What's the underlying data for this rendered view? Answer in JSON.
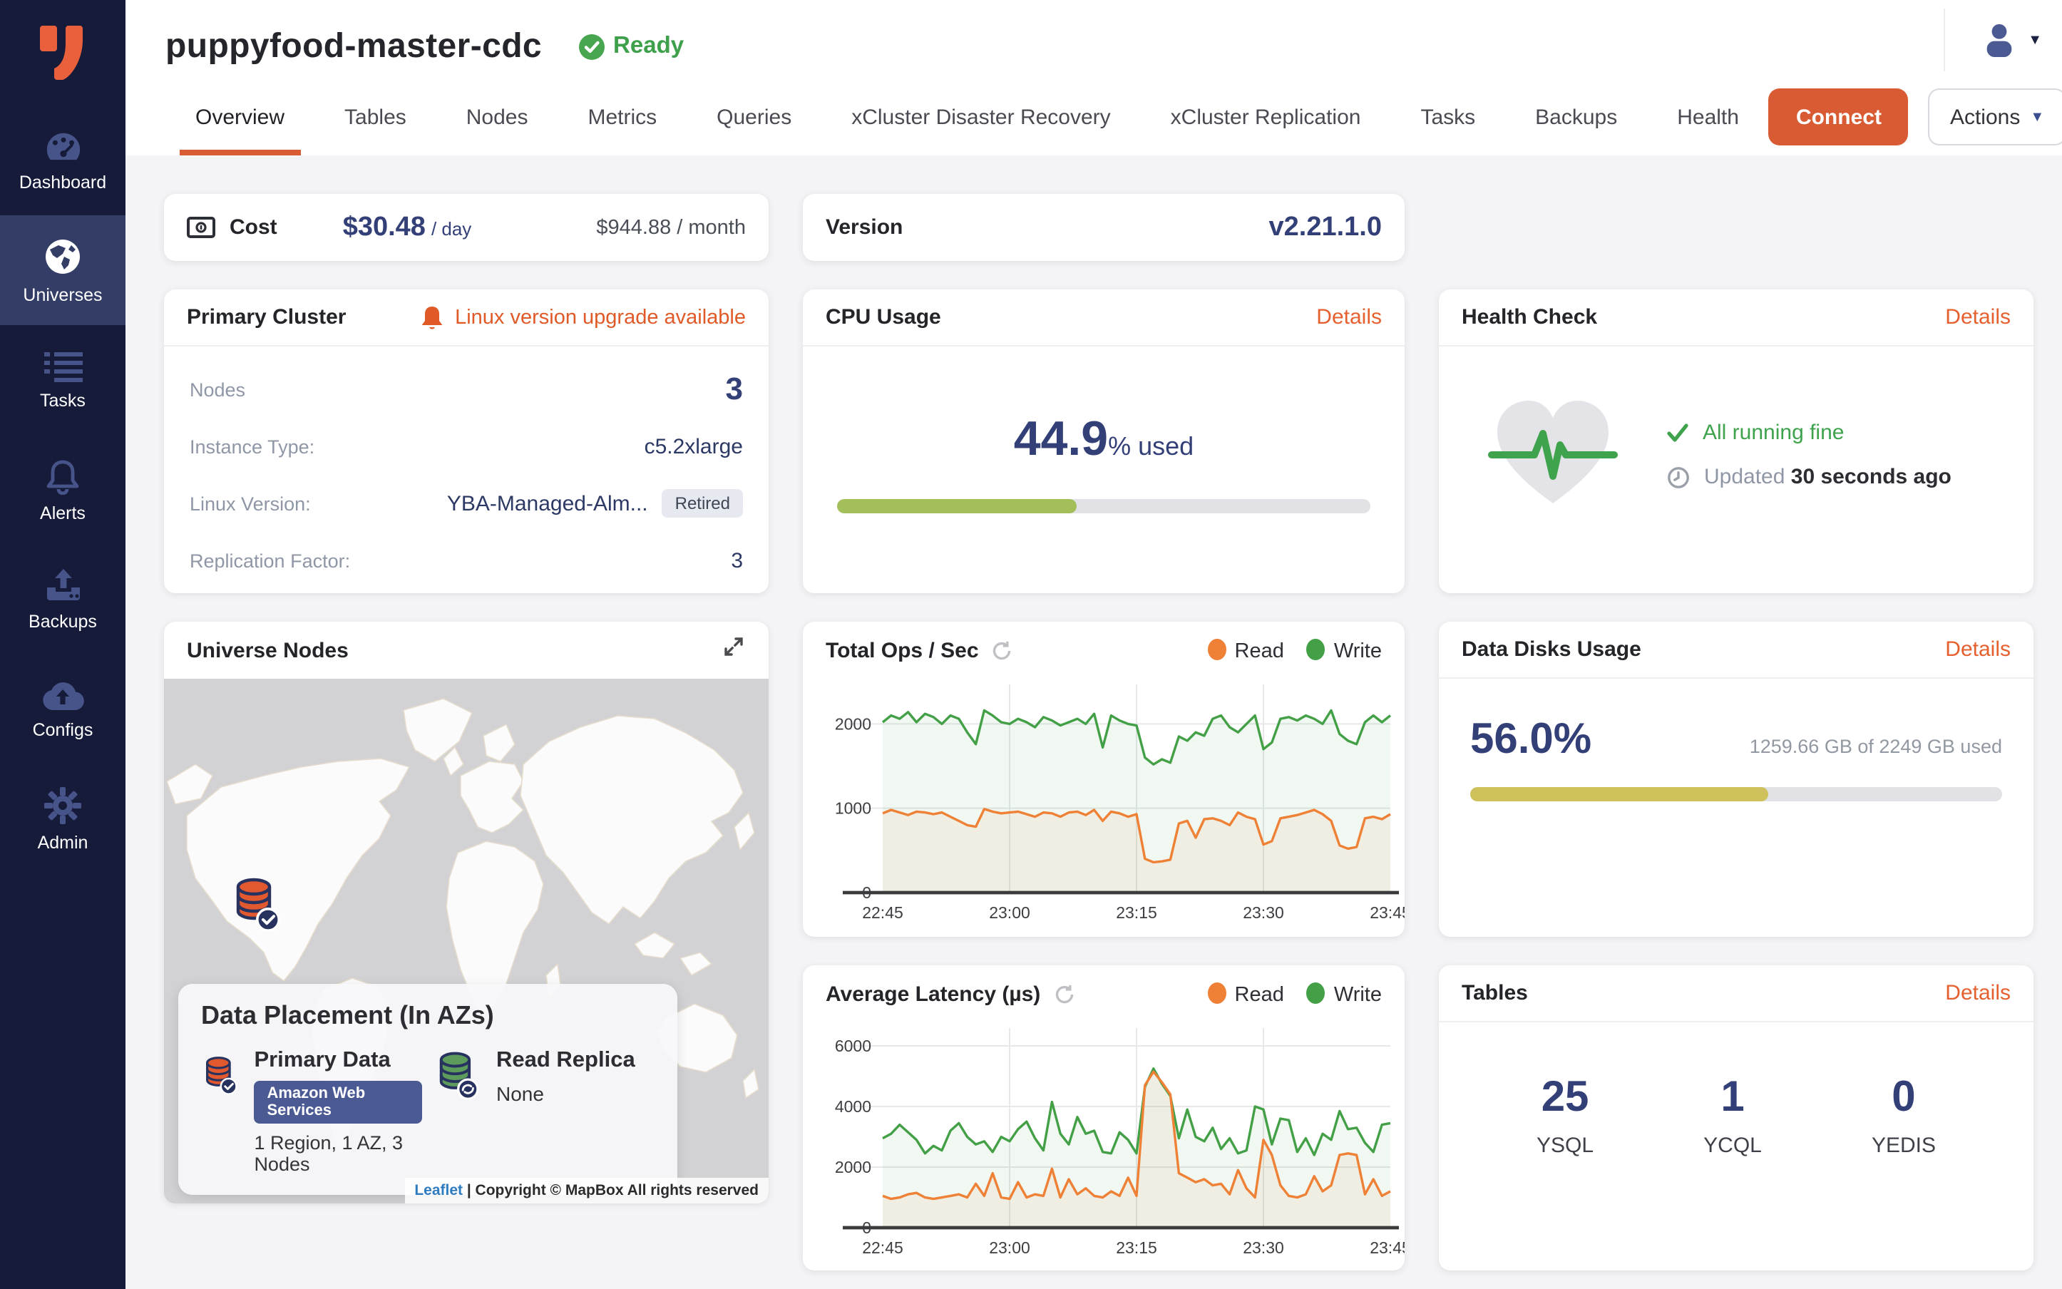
{
  "app": {
    "title": "puppyfood-master-cdc",
    "status": "Ready"
  },
  "sidebar": {
    "items": [
      {
        "label": "Dashboard"
      },
      {
        "label": "Universes"
      },
      {
        "label": "Tasks"
      },
      {
        "label": "Alerts"
      },
      {
        "label": "Backups"
      },
      {
        "label": "Configs"
      },
      {
        "label": "Admin"
      }
    ]
  },
  "tabs": [
    "Overview",
    "Tables",
    "Nodes",
    "Metrics",
    "Queries",
    "xCluster Disaster Recovery",
    "xCluster Replication",
    "Tasks",
    "Backups",
    "Health"
  ],
  "header_buttons": {
    "connect": "Connect",
    "actions": "Actions"
  },
  "cost": {
    "label": "Cost",
    "per_day": "$30.48",
    "per_day_unit": "/ day",
    "per_month": "$944.88 / month"
  },
  "version": {
    "label": "Version",
    "value": "v2.21.1.0"
  },
  "cluster": {
    "title": "Primary Cluster",
    "alert": "Linux version upgrade available",
    "rows": [
      {
        "label": "Nodes",
        "value": "3"
      },
      {
        "label": "Instance Type:",
        "value": "c5.2xlarge"
      },
      {
        "label": "Linux Version:",
        "value": "YBA-Managed-Alm...",
        "badge": "Retired"
      },
      {
        "label": "Replication Factor:",
        "value": "3"
      }
    ]
  },
  "cpu": {
    "title": "CPU Usage",
    "details": "Details",
    "value": "44.9",
    "suffix": "% used",
    "percent": 44.9
  },
  "health": {
    "title": "Health Check",
    "details": "Details",
    "status": "All running fine",
    "updated_label": "Updated",
    "updated_value": "30 seconds ago"
  },
  "map": {
    "title": "Universe Nodes",
    "placement_title": "Data Placement (In AZs)",
    "primary_label": "Primary Data",
    "primary_provider": "Amazon Web Services",
    "primary_sub": "1 Region, 1 AZ, 3 Nodes",
    "replica_label": "Read Replica",
    "replica_value": "None",
    "attribution_link": "Leaflet",
    "attribution_rest": " | Copyright © MapBox All rights reserved"
  },
  "disks": {
    "title": "Data Disks Usage",
    "details": "Details",
    "percent_label": "56.0%",
    "percent": 56,
    "usage": "1259.66 GB of 2249 GB used"
  },
  "tables": {
    "title": "Tables",
    "details": "Details",
    "counts": [
      {
        "value": "25",
        "label": "YSQL"
      },
      {
        "value": "1",
        "label": "YCQL"
      },
      {
        "value": "0",
        "label": "YEDIS"
      }
    ]
  },
  "chart_data": [
    {
      "type": "area",
      "title": "Total Ops / Sec",
      "x_labels": [
        "22:45",
        "23:00",
        "23:15",
        "23:30",
        "23:45"
      ],
      "y_ticks": [
        0,
        1000,
        2000
      ],
      "y_max": 2400,
      "grid": true,
      "legend_position": "top-right",
      "series": [
        {
          "name": "Read",
          "color": "#ee8136",
          "values": [
            940,
            980,
            950,
            920,
            960,
            950,
            930,
            950,
            900,
            850,
            800,
            780,
            990,
            960,
            940,
            950,
            960,
            930,
            900,
            950,
            940,
            900,
            950,
            960,
            920,
            980,
            850,
            960,
            940,
            900,
            930,
            400,
            360,
            370,
            390,
            820,
            850,
            650,
            870,
            880,
            850,
            800,
            950,
            900,
            870,
            570,
            610,
            880,
            900,
            920,
            950,
            980,
            930,
            850,
            560,
            520,
            540,
            880,
            900,
            870,
            930
          ]
        },
        {
          "name": "Write",
          "color": "#43a047",
          "values": [
            2020,
            2100,
            2060,
            2140,
            2020,
            2120,
            2080,
            2000,
            2100,
            2060,
            1900,
            1760,
            2160,
            2100,
            2020,
            2000,
            2060,
            2020,
            1960,
            2080,
            2040,
            1980,
            2020,
            2060,
            2000,
            2120,
            1720,
            2100,
            2040,
            2000,
            1980,
            1600,
            1520,
            1580,
            1540,
            1850,
            1800,
            1900,
            1860,
            2060,
            2100,
            1960,
            1900,
            2000,
            2100,
            1700,
            1780,
            2060,
            2080,
            2040,
            2100,
            2060,
            2000,
            2160,
            1880,
            1800,
            1760,
            2020,
            2100,
            2020,
            2100
          ]
        }
      ]
    },
    {
      "type": "area",
      "title": "Average Latency (µs)",
      "x_labels": [
        "22:45",
        "23:00",
        "23:15",
        "23:30",
        "23:45"
      ],
      "y_ticks": [
        0,
        2000,
        4000,
        6000
      ],
      "y_max": 6400,
      "grid": true,
      "legend_position": "top-right",
      "series": [
        {
          "name": "Read",
          "color": "#ee8136",
          "values": [
            1050,
            950,
            1000,
            1100,
            1150,
            1000,
            950,
            1000,
            1050,
            1100,
            1000,
            1450,
            1050,
            1800,
            1000,
            950,
            1500,
            1000,
            1100,
            1050,
            1950,
            1000,
            1600,
            1100,
            1300,
            1050,
            1000,
            1200,
            1050,
            1650,
            1050,
            4700,
            5150,
            4800,
            4400,
            1800,
            1650,
            1500,
            1600,
            1400,
            1450,
            1100,
            1900,
            1300,
            1000,
            2900,
            2400,
            1400,
            1050,
            1000,
            1100,
            1700,
            1200,
            1400,
            2400,
            2450,
            2400,
            1100,
            1600,
            1050,
            1200
          ]
        },
        {
          "name": "Write",
          "color": "#43a047",
          "values": [
            2950,
            3100,
            3400,
            3150,
            2900,
            2450,
            2700,
            2550,
            3200,
            3450,
            3000,
            2750,
            2850,
            2500,
            3000,
            2850,
            3250,
            3500,
            2950,
            2550,
            4150,
            3100,
            2750,
            3650,
            3100,
            3200,
            2500,
            2450,
            3150,
            2900,
            2450,
            4650,
            5250,
            4750,
            4350,
            2950,
            3900,
            3000,
            2850,
            3300,
            2600,
            2950,
            2450,
            2550,
            4000,
            3900,
            2750,
            3600,
            3550,
            2500,
            2950,
            2400,
            3100,
            2900,
            3850,
            3250,
            3300,
            2800,
            2500,
            3400,
            3450
          ]
        }
      ]
    }
  ]
}
